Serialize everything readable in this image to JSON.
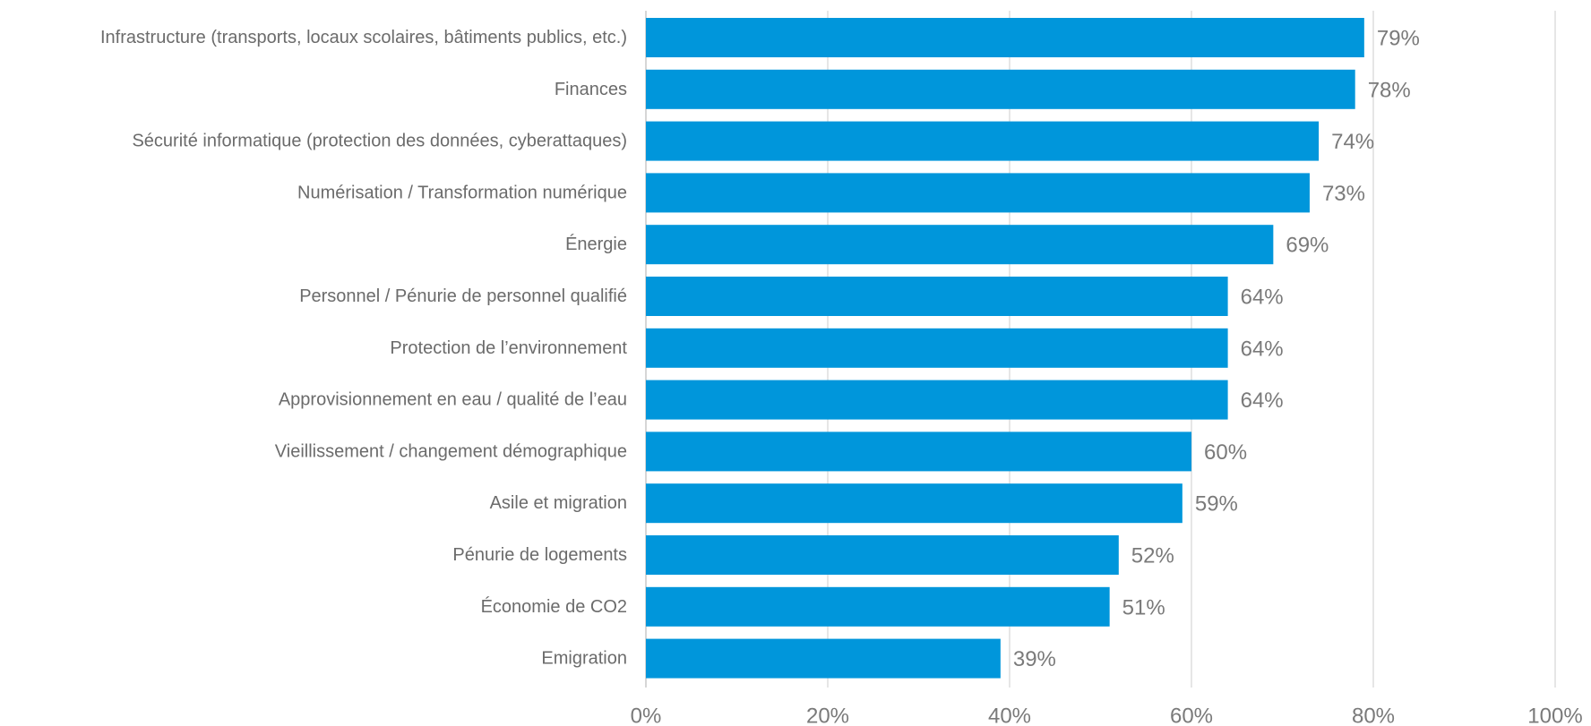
{
  "chart_data": {
    "type": "bar",
    "orientation": "horizontal",
    "categories": [
      "Infrastructure (transports, locaux scolaires, bâtiments publics, etc.)",
      "Finances",
      "Sécurité informatique (protection des données, cyberattaques)",
      "Numérisation / Transformation numérique",
      "Énergie",
      "Personnel / Pénurie de personnel qualifié",
      "Protection de l’environnement",
      "Approvisionnement en eau / qualité de l’eau",
      "Vieillissement / changement démographique",
      "Asile et migration",
      "Pénurie de logements",
      "Économie de CO2",
      "Emigration"
    ],
    "values": [
      79,
      78,
      74,
      73,
      69,
      64,
      64,
      64,
      60,
      59,
      52,
      51,
      39
    ],
    "value_labels": [
      "79%",
      "78%",
      "74%",
      "73%",
      "69%",
      "64%",
      "64%",
      "64%",
      "60%",
      "59%",
      "52%",
      "51%",
      "39%"
    ],
    "xlim": [
      0,
      100
    ],
    "x_ticks": [
      0,
      20,
      40,
      60,
      80,
      100
    ],
    "x_tick_labels": [
      "0%",
      "20%",
      "40%",
      "60%",
      "80%",
      "100%"
    ],
    "grid": true,
    "legend": "none",
    "colors": {
      "bar": "#0096db",
      "category_text": "#6b6b6b",
      "value_text": "#7a7a7a",
      "gridline": "#d9d9d9",
      "axis": "#bfbfbf"
    }
  }
}
